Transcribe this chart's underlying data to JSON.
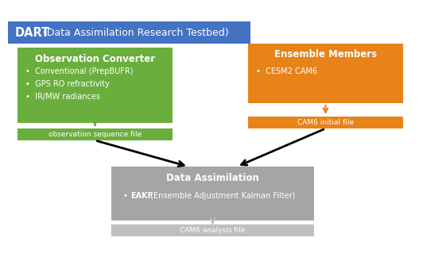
{
  "title_dart": "DART",
  "title_rest": " (Data Assimilation Research Testbed)",
  "title_bg": "#4472C4",
  "title_text_color": "#FFFFFF",
  "green_color": "#6AAF3D",
  "green_dark": "#5B9E30",
  "orange_color": "#E8831A",
  "orange_dark": "#D07318",
  "gray_color": "#A5A5A5",
  "gray_file_color": "#BFBFBF",
  "obs_box_title": "Observation Converter",
  "obs_box_bullets": [
    "Conventional (PrepBUFR)",
    "GPS RO refractivity",
    "IR/MW radiances"
  ],
  "obs_file_label": "observation sequence file",
  "ens_box_title": "Ensemble Members",
  "ens_box_bullets": [
    "CESM2 CAM6"
  ],
  "cam6_file_label": "CAM6 initial file",
  "da_box_title": "Data Assimilation",
  "da_box_bullet_bold": "EAKF",
  "da_box_bullet_rest": " (Ensemble Adjustment Kalman Filter)",
  "da_file_label": "CAM6 analysis file",
  "background_color": "#FFFFFF",
  "fig_w": 5.32,
  "fig_h": 3.19,
  "dpi": 100
}
